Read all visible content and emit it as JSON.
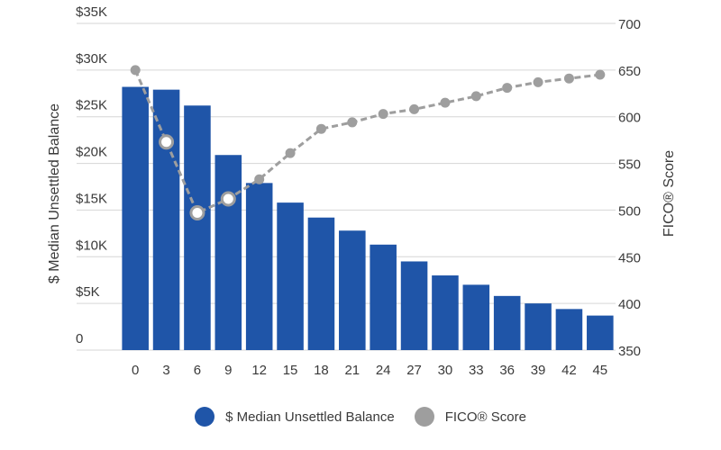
{
  "chart_data": {
    "type": "bar+line",
    "categories": [
      "0",
      "3",
      "6",
      "9",
      "12",
      "15",
      "18",
      "21",
      "24",
      "27",
      "30",
      "33",
      "36",
      "39",
      "42",
      "45"
    ],
    "series": [
      {
        "name": "$ Median Unsettled Balance",
        "type": "bar",
        "axis": "left",
        "color": "#1f55a8",
        "values": [
          28200,
          27900,
          26200,
          20900,
          17900,
          15800,
          14200,
          12800,
          11300,
          9500,
          8000,
          7000,
          5800,
          5000,
          4400,
          3700
        ]
      },
      {
        "name": "FICO® Score",
        "type": "line",
        "axis": "right",
        "color": "#9e9e9e",
        "values": [
          650,
          573,
          497,
          512,
          533,
          561,
          587,
          594,
          603,
          608,
          615,
          622,
          631,
          637,
          641,
          645
        ]
      }
    ],
    "yleft": {
      "label": "$ Median Unsettled Balance",
      "min": 0,
      "max": 35000,
      "step": 5000,
      "tick_labels": [
        "0",
        "$5K",
        "$10K",
        "$15K",
        "$20K",
        "$25K",
        "$30K",
        "$35K"
      ]
    },
    "yright": {
      "label": "FICO® Score",
      "min": 350,
      "max": 700,
      "step": 50,
      "tick_labels": [
        "350",
        "400",
        "450",
        "500",
        "550",
        "600",
        "650",
        "700"
      ]
    },
    "line_markers": [
      true,
      true,
      true,
      true,
      true,
      true,
      true,
      true,
      true,
      true,
      true,
      true,
      true,
      true,
      true,
      true
    ],
    "highlighted_markers": [
      1,
      2,
      3
    ],
    "grid": true,
    "legend_position": "bottom-center"
  }
}
